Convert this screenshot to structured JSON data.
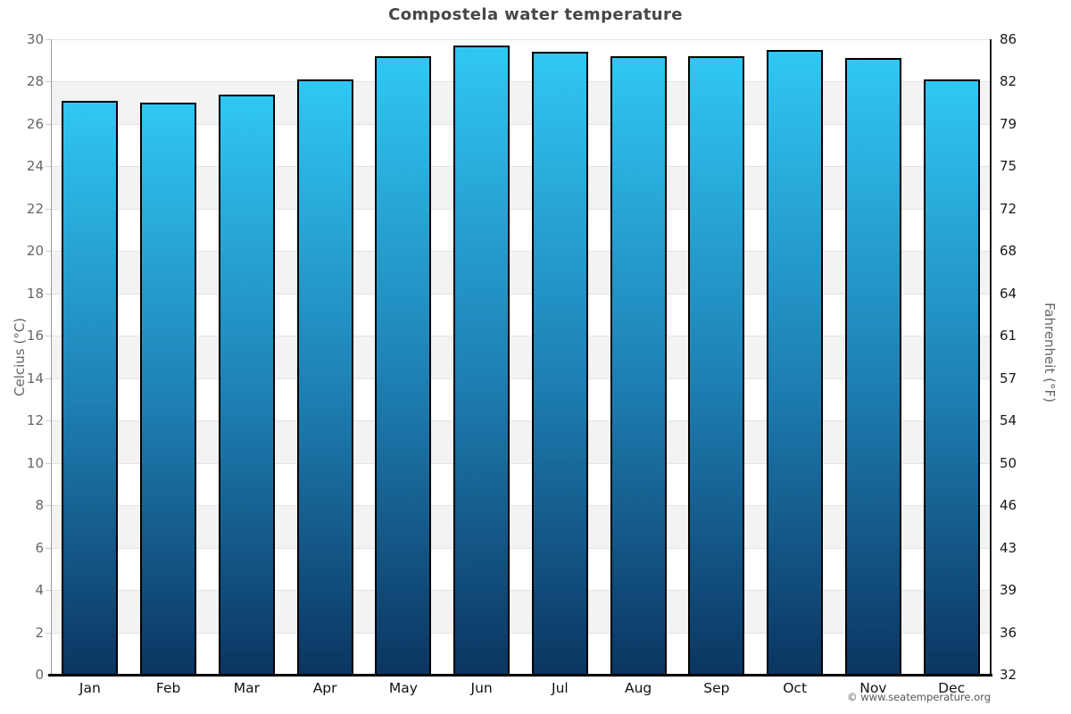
{
  "title": "Compostela water temperature",
  "footer": "© www.seatemperature.org",
  "axes": {
    "left_label": "Celcius (°C)",
    "right_label": "Fahrenheit (°F)"
  },
  "chart_data": {
    "type": "bar",
    "title": "Compostela water temperature",
    "categories": [
      "Jan",
      "Feb",
      "Mar",
      "Apr",
      "May",
      "Jun",
      "Jul",
      "Aug",
      "Sep",
      "Oct",
      "Nov",
      "Dec"
    ],
    "values": [
      27.1,
      27.0,
      27.4,
      28.1,
      29.2,
      29.7,
      29.4,
      29.2,
      29.2,
      29.5,
      29.1,
      28.1
    ],
    "unit": "°C",
    "xlabel": "",
    "ylabel_left": "Celcius (°C)",
    "ylabel_right": "Fahrenheit (°F)",
    "ylim": [
      0,
      30
    ],
    "ytick_step": 2,
    "yticks_celsius": [
      0,
      2,
      4,
      6,
      8,
      10,
      12,
      14,
      16,
      18,
      20,
      22,
      24,
      26,
      28,
      30
    ],
    "yticks_fahrenheit": [
      "32",
      "36",
      "39",
      "43",
      "46",
      "50",
      "54",
      "57",
      "61",
      "64",
      "68",
      "72",
      "75",
      "79",
      "82",
      "86"
    ],
    "grid": "alternating-horizontal-bands",
    "legend": "none",
    "colors": {
      "bar_gradient_top": "#30c7f4",
      "bar_gradient_mid": "#1e80b4",
      "bar_gradient_bottom": "#0b3561",
      "bar_border": "#000000",
      "band_light": "#f3f3f3",
      "band_white": "#ffffff",
      "gridline": "#e3e3e3",
      "axis_left": "#999999",
      "axis_right": "#1a1a1a",
      "axis_bottom": "#000000",
      "title_color": "#474747",
      "tick_label_left": "#666666",
      "tick_label_right": "#1a1a1a",
      "month_label": "#111111",
      "axis_title_color": "#666666",
      "footer_color": "#565656"
    }
  }
}
